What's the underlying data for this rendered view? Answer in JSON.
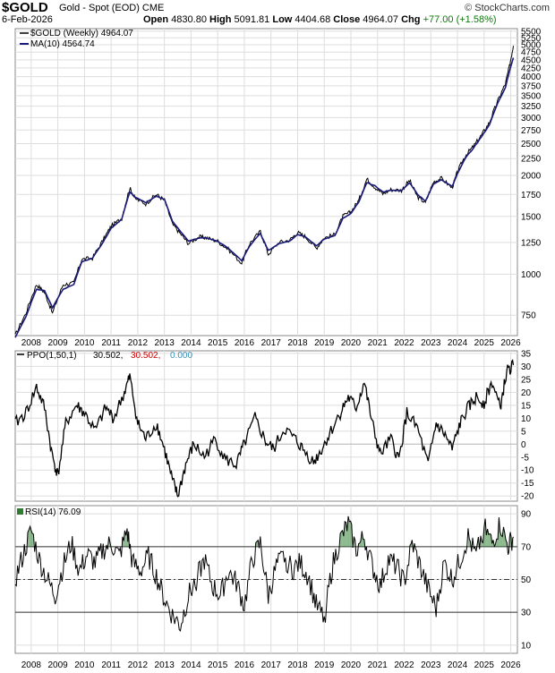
{
  "header": {
    "symbol": "$GOLD",
    "name": "Gold - Spot (EOD)  CME",
    "date": "6-Feb-2026",
    "brand": "© StockCharts.com",
    "open_label": "Open",
    "open": "4830.80",
    "high_label": "High",
    "high": "5091.81",
    "low_label": "Low",
    "low": "4404.68",
    "close_label": "Close",
    "close": "4964.07",
    "chg_label": "Chg",
    "chg": "+77.00 (+1.58%)",
    "chg_color": "#0a7a0a"
  },
  "legend": {
    "price_label": "$GOLD (Weekly) 4964.07",
    "ma_label": "MA(10) 4564.74",
    "ppo_prefix": "PPO(1,50,1)",
    "ppo_val1": "30.502,",
    "ppo_val2": "30.502,",
    "ppo_val3": "0.000",
    "rsi_label": "RSI(14) 76.09"
  },
  "colors": {
    "price_line": "#000000",
    "ma_line": "#1a1a7a",
    "ppo_line": "#000000",
    "ppo_val2": "#cc0000",
    "ppo_val3": "#3a8fb7",
    "rsi_line": "#000000",
    "rsi_fill": "#2e7d32",
    "grid": "#dddddd"
  },
  "x_axis_labels": [
    "2008",
    "2009",
    "2010",
    "2011",
    "2012",
    "2013",
    "2014",
    "2015",
    "2016",
    "2017",
    "2018",
    "2019",
    "2020",
    "2021",
    "2022",
    "2023",
    "2024",
    "2025",
    "2026"
  ],
  "chart_data": [
    {
      "type": "line",
      "title": "$GOLD (Weekly)",
      "y_scale": "log",
      "ylim": [
        650,
        5600
      ],
      "y_ticks": [
        750,
        1000,
        1250,
        1500,
        1750,
        2000,
        2250,
        2500,
        2750,
        3000,
        3250,
        3500,
        3750,
        4000,
        4250,
        4500,
        4750,
        5000,
        5250,
        5500
      ],
      "x": [
        2007.4,
        2007.8,
        2008.2,
        2008.5,
        2008.8,
        2009.2,
        2009.6,
        2009.9,
        2010.3,
        2010.7,
        2011.0,
        2011.4,
        2011.7,
        2011.9,
        2012.3,
        2012.7,
        2013.0,
        2013.3,
        2013.6,
        2013.9,
        2014.3,
        2014.6,
        2015.0,
        2015.4,
        2015.9,
        2016.2,
        2016.6,
        2016.9,
        2017.3,
        2017.7,
        2018.0,
        2018.3,
        2018.7,
        2019.0,
        2019.4,
        2019.7,
        2020.0,
        2020.3,
        2020.6,
        2020.9,
        2021.2,
        2021.5,
        2021.9,
        2022.2,
        2022.5,
        2022.8,
        2023.1,
        2023.4,
        2023.8,
        2024.0,
        2024.3,
        2024.6,
        2024.9,
        2025.2,
        2025.5,
        2025.8,
        2025.95,
        2026.1
      ],
      "series": [
        {
          "name": "$GOLD",
          "values": [
            650,
            760,
            930,
            880,
            760,
            930,
            940,
            1110,
            1120,
            1270,
            1400,
            1480,
            1830,
            1700,
            1640,
            1750,
            1680,
            1420,
            1330,
            1240,
            1300,
            1290,
            1260,
            1190,
            1080,
            1240,
            1350,
            1150,
            1250,
            1270,
            1340,
            1300,
            1200,
            1290,
            1320,
            1500,
            1550,
            1680,
            1950,
            1840,
            1760,
            1810,
            1800,
            1930,
            1720,
            1650,
            1910,
            1960,
            1830,
            2050,
            2300,
            2450,
            2650,
            2900,
            3350,
            3800,
            4300,
            4964
          ]
        },
        {
          "name": "MA(10)",
          "values": [
            640,
            740,
            900,
            890,
            790,
            900,
            930,
            1090,
            1120,
            1250,
            1380,
            1470,
            1780,
            1720,
            1650,
            1730,
            1690,
            1450,
            1350,
            1260,
            1290,
            1290,
            1260,
            1200,
            1100,
            1220,
            1330,
            1180,
            1240,
            1260,
            1320,
            1300,
            1220,
            1280,
            1310,
            1480,
            1530,
            1660,
            1900,
            1860,
            1780,
            1800,
            1800,
            1900,
            1750,
            1670,
            1880,
            1940,
            1850,
            2020,
            2260,
            2420,
            2620,
            2850,
            3300,
            3700,
            4150,
            4565
          ]
        }
      ]
    },
    {
      "type": "line",
      "title": "PPO(1,50,1)",
      "ylim": [
        -22,
        36
      ],
      "y_ticks": [
        -20,
        -15,
        -10,
        -5,
        0,
        5,
        10,
        15,
        20,
        25,
        30,
        35
      ],
      "x": [
        2007.4,
        2007.8,
        2008.2,
        2008.5,
        2008.8,
        2009.0,
        2009.3,
        2009.7,
        2010.0,
        2010.4,
        2010.8,
        2011.1,
        2011.5,
        2011.7,
        2012.0,
        2012.3,
        2012.7,
        2013.0,
        2013.3,
        2013.5,
        2013.8,
        2014.1,
        2014.5,
        2014.9,
        2015.3,
        2015.7,
        2016.0,
        2016.4,
        2016.8,
        2017.1,
        2017.5,
        2017.9,
        2018.2,
        2018.6,
        2018.9,
        2019.2,
        2019.6,
        2019.9,
        2020.2,
        2020.5,
        2020.8,
        2021.1,
        2021.5,
        2021.8,
        2022.1,
        2022.5,
        2022.9,
        2023.2,
        2023.5,
        2023.8,
        2024.1,
        2024.4,
        2024.7,
        2025.0,
        2025.3,
        2025.6,
        2025.85,
        2026.1
      ],
      "series": [
        {
          "name": "PPO",
          "values": [
            8,
            12,
            22,
            14,
            -5,
            -12,
            8,
            15,
            12,
            5,
            14,
            10,
            20,
            26,
            8,
            2,
            8,
            -2,
            -14,
            -20,
            -8,
            0,
            -5,
            2,
            -6,
            -8,
            0,
            10,
            1,
            -2,
            6,
            2,
            -2,
            -7,
            -2,
            4,
            12,
            18,
            14,
            24,
            8,
            -4,
            2,
            -6,
            12,
            6,
            -8,
            8,
            4,
            -2,
            8,
            14,
            18,
            16,
            24,
            14,
            28,
            30.5
          ]
        }
      ]
    },
    {
      "type": "line",
      "title": "RSI(14)",
      "ylim": [
        5,
        95
      ],
      "y_ticks": [
        10,
        30,
        50,
        70,
        90
      ],
      "reference_lines": [
        70,
        50,
        30
      ],
      "x": [
        2007.4,
        2007.7,
        2008.0,
        2008.3,
        2008.6,
        2008.9,
        2009.2,
        2009.5,
        2009.8,
        2010.1,
        2010.4,
        2010.7,
        2011.0,
        2011.3,
        2011.6,
        2011.8,
        2012.1,
        2012.4,
        2012.7,
        2013.0,
        2013.3,
        2013.6,
        2013.9,
        2014.2,
        2014.5,
        2014.8,
        2015.1,
        2015.4,
        2015.7,
        2016.0,
        2016.3,
        2016.6,
        2016.9,
        2017.2,
        2017.5,
        2017.8,
        2018.1,
        2018.4,
        2018.7,
        2019.0,
        2019.3,
        2019.6,
        2019.9,
        2020.2,
        2020.5,
        2020.8,
        2021.1,
        2021.4,
        2021.7,
        2022.0,
        2022.3,
        2022.6,
        2022.9,
        2023.2,
        2023.5,
        2023.8,
        2024.1,
        2024.4,
        2024.7,
        2025.0,
        2025.3,
        2025.6,
        2025.9,
        2026.1
      ],
      "series": [
        {
          "name": "RSI",
          "values": [
            50,
            65,
            80,
            62,
            50,
            40,
            58,
            72,
            55,
            65,
            60,
            68,
            72,
            64,
            80,
            60,
            55,
            64,
            52,
            38,
            28,
            22,
            40,
            50,
            62,
            46,
            40,
            55,
            48,
            34,
            62,
            72,
            40,
            58,
            64,
            56,
            60,
            52,
            34,
            26,
            58,
            74,
            84,
            68,
            76,
            58,
            46,
            62,
            58,
            48,
            72,
            58,
            44,
            32,
            60,
            50,
            62,
            76,
            64,
            82,
            72,
            84,
            70,
            76
          ]
        }
      ]
    }
  ]
}
